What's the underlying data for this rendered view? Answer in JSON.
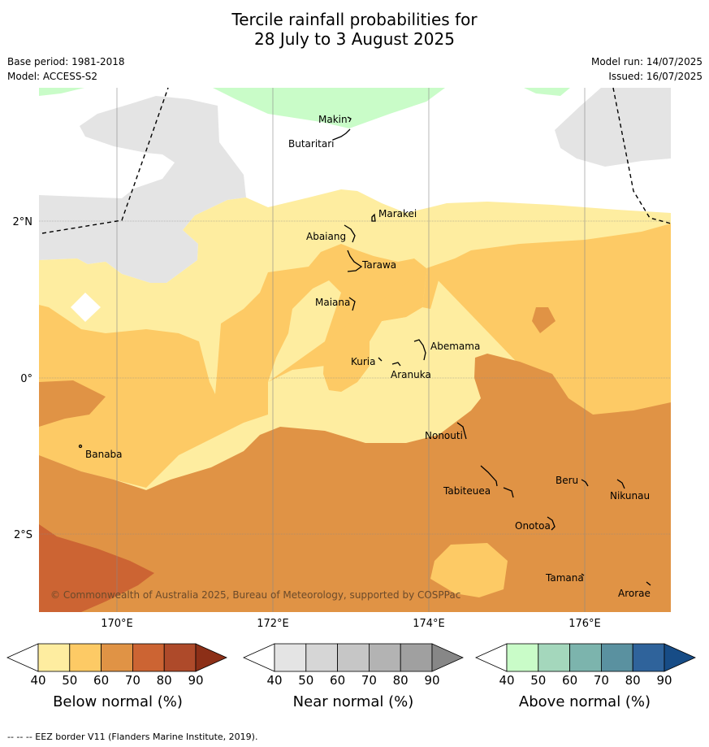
{
  "title": {
    "line1": "Tercile rainfall probabilities for",
    "line2": "28 July to 3 August 2025"
  },
  "meta": {
    "base_period": "Base period: 1981-2018",
    "model": "Model: ACCESS-S2",
    "model_run": "Model run: 14/07/2025",
    "issued": "Issued: 16/07/2025"
  },
  "axes": {
    "lat_ticks": [
      "2°N",
      "0°",
      "2°S"
    ],
    "lon_ticks": [
      "170°E",
      "172°E",
      "174°E",
      "176°E"
    ]
  },
  "places": [
    "Makin",
    "Butaritari",
    "Marakei",
    "Abaiang",
    "Tarawa",
    "Maiana",
    "Abemama",
    "Kuria",
    "Aranuka",
    "Nonouti",
    "Banaba",
    "Beru",
    "Tabiteuea",
    "Nikunau",
    "Onotoa",
    "Tamana",
    "Arorae"
  ],
  "copyright": "© Commonwealth of Australia 2025, Bureau of Meteorology, supported by COSPPac",
  "colorbars": [
    {
      "label": "Below normal (%)",
      "ticks": [
        "40",
        "50",
        "60",
        "70",
        "80",
        "90"
      ],
      "colors": [
        "#ffffff",
        "#feeda0",
        "#fdca65",
        "#e09345",
        "#cc6433",
        "#ae4a2a",
        "#8c2f17"
      ]
    },
    {
      "label": "Near normal (%)",
      "ticks": [
        "40",
        "50",
        "60",
        "70",
        "80",
        "90"
      ],
      "colors": [
        "#ffffff",
        "#e4e4e4",
        "#d6d6d6",
        "#c6c6c6",
        "#b3b3b3",
        "#a0a0a0",
        "#878787"
      ]
    },
    {
      "label": "Above normal (%)",
      "ticks": [
        "40",
        "50",
        "60",
        "70",
        "80",
        "90"
      ],
      "colors": [
        "#ffffff",
        "#c9fcc8",
        "#a4d7bc",
        "#7cb4ad",
        "#5a91a0",
        "#2f639b",
        "#174c86"
      ]
    }
  ],
  "footer": "-- -- -- EEZ border V11 (Flanders Marine Institute, 2019)."
}
